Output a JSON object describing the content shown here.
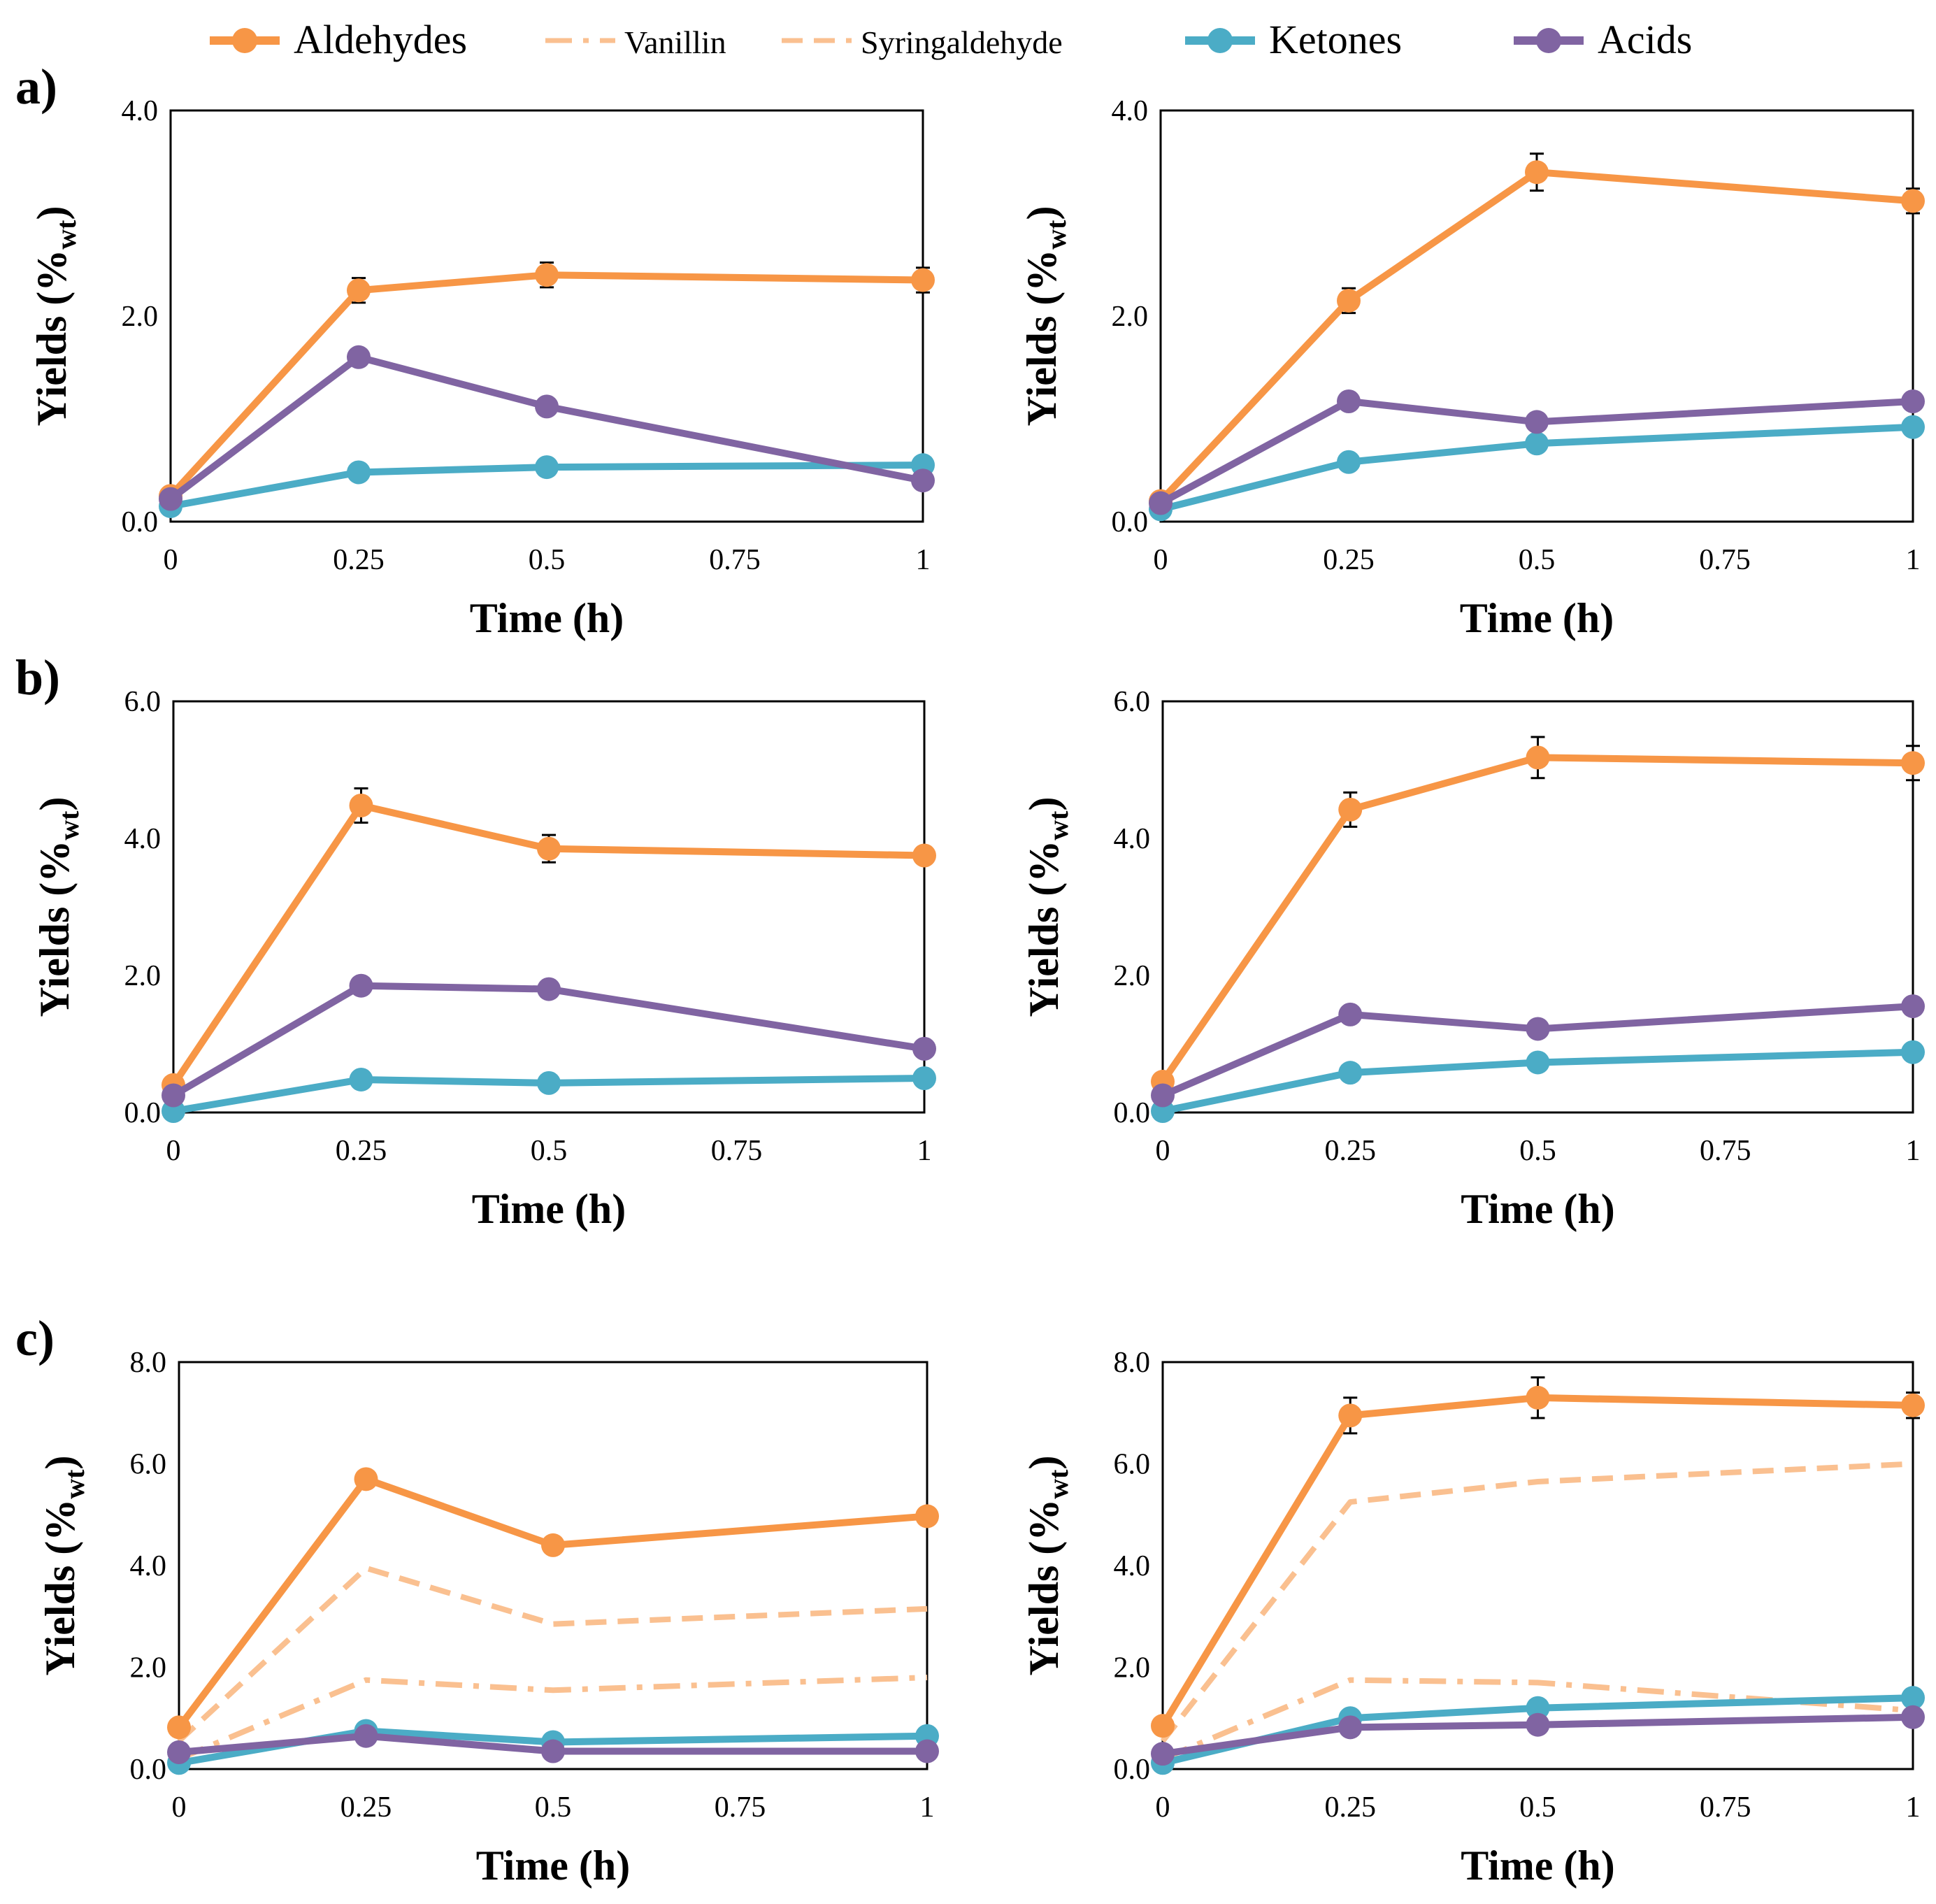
{
  "colors": {
    "aldehydes": "#F79646",
    "vanillin": "#FAC090",
    "syringaldehyde": "#FAC090",
    "ketones": "#4BACC6",
    "acids": "#8064A2"
  },
  "legend": [
    {
      "key": "aldehydes",
      "label": "Aldehydes",
      "style": "solid-marker"
    },
    {
      "key": "vanillin",
      "label": "Vanillin",
      "style": "dashdot"
    },
    {
      "key": "syringaldehyde",
      "label": "Syringaldehyde",
      "style": "dash"
    },
    {
      "key": "ketones",
      "label": "Ketones",
      "style": "solid-marker"
    },
    {
      "key": "acids",
      "label": "Acids",
      "style": "solid-marker"
    }
  ],
  "chart_data": [
    {
      "id": "a-left",
      "panel_label": "a)",
      "type": "line",
      "xlabel": "Time (h)",
      "ylabel": "Yields (%wt)",
      "ylabel_main": "Yields (%",
      "ylabel_sub": "wt",
      "ylabel_close": ")",
      "x": [
        0,
        0.25,
        0.5,
        0.75,
        1
      ],
      "x_ticks": [
        "0",
        "0.25",
        "0.5",
        "0.75",
        "1"
      ],
      "ylim": [
        0,
        4
      ],
      "y_ticks": [
        "0.0",
        "2.0",
        "4.0"
      ],
      "series": [
        {
          "name": "Aldehydes",
          "key": "aldehydes",
          "x": [
            0,
            0.25,
            0.5,
            1
          ],
          "values": [
            0.25,
            2.25,
            2.4,
            2.35
          ],
          "errors": [
            0,
            0.12,
            0.12,
            0.12
          ],
          "markers": true
        },
        {
          "name": "Ketones",
          "key": "ketones",
          "x": [
            0,
            0.25,
            0.5,
            1
          ],
          "values": [
            0.15,
            0.48,
            0.53,
            0.55
          ],
          "markers": true
        },
        {
          "name": "Acids",
          "key": "acids",
          "x": [
            0,
            0.25,
            0.5,
            1
          ],
          "values": [
            0.22,
            1.6,
            1.12,
            0.4
          ],
          "markers": true
        }
      ]
    },
    {
      "id": "a-right",
      "panel_label": "",
      "type": "line",
      "xlabel": "Time (h)",
      "ylabel": "Yields (%wt)",
      "ylabel_main": "Yields (%",
      "ylabel_sub": "wt",
      "ylabel_close": ")",
      "x": [
        0,
        0.25,
        0.5,
        0.75,
        1
      ],
      "x_ticks": [
        "0",
        "0.25",
        "0.5",
        "0.75",
        "1"
      ],
      "ylim": [
        0,
        4
      ],
      "y_ticks": [
        "0.0",
        "2.0",
        "4.0"
      ],
      "series": [
        {
          "name": "Aldehydes",
          "key": "aldehydes",
          "x": [
            0,
            0.25,
            0.5,
            1
          ],
          "values": [
            0.2,
            2.15,
            3.4,
            3.12
          ],
          "errors": [
            0,
            0.12,
            0.18,
            0.12
          ],
          "markers": true
        },
        {
          "name": "Ketones",
          "key": "ketones",
          "x": [
            0,
            0.25,
            0.5,
            1
          ],
          "values": [
            0.12,
            0.58,
            0.76,
            0.92
          ],
          "markers": true
        },
        {
          "name": "Acids",
          "key": "acids",
          "x": [
            0,
            0.25,
            0.5,
            1
          ],
          "values": [
            0.18,
            1.17,
            0.97,
            1.17
          ],
          "markers": true
        }
      ]
    },
    {
      "id": "b-left",
      "panel_label": "b)",
      "type": "line",
      "xlabel": "Time (h)",
      "ylabel": "Yields (%wt)",
      "ylabel_main": "Yields (%",
      "ylabel_sub": "wt",
      "ylabel_close": ")",
      "x": [
        0,
        0.25,
        0.5,
        0.75,
        1
      ],
      "x_ticks": [
        "0",
        "0.25",
        "0.5",
        "0.75",
        "1"
      ],
      "ylim": [
        0,
        6
      ],
      "y_ticks": [
        "0.0",
        "2.0",
        "4.0",
        "6.0"
      ],
      "series": [
        {
          "name": "Aldehydes",
          "key": "aldehydes",
          "x": [
            0,
            0.25,
            0.5,
            1
          ],
          "values": [
            0.4,
            4.48,
            3.85,
            3.75
          ],
          "errors": [
            0,
            0.25,
            0.2,
            0.12
          ],
          "markers": true
        },
        {
          "name": "Ketones",
          "key": "ketones",
          "x": [
            0,
            0.25,
            0.5,
            1
          ],
          "values": [
            0.02,
            0.48,
            0.43,
            0.5
          ],
          "markers": true
        },
        {
          "name": "Acids",
          "key": "acids",
          "x": [
            0,
            0.25,
            0.5,
            1
          ],
          "values": [
            0.25,
            1.85,
            1.8,
            0.93
          ],
          "markers": true
        }
      ]
    },
    {
      "id": "b-right",
      "panel_label": "",
      "type": "line",
      "xlabel": "Time (h)",
      "ylabel": "Yields (%wt)",
      "ylabel_main": "Yields (%",
      "ylabel_sub": "wt",
      "ylabel_close": ")",
      "x": [
        0,
        0.25,
        0.5,
        0.75,
        1
      ],
      "x_ticks": [
        "0",
        "0.25",
        "0.5",
        "0.75",
        "1"
      ],
      "ylim": [
        0,
        6
      ],
      "y_ticks": [
        "0.0",
        "2.0",
        "4.0",
        "6.0"
      ],
      "series": [
        {
          "name": "Aldehydes",
          "key": "aldehydes",
          "x": [
            0,
            0.25,
            0.5,
            1
          ],
          "values": [
            0.45,
            4.42,
            5.18,
            5.1
          ],
          "errors": [
            0,
            0.25,
            0.3,
            0.25
          ],
          "markers": true
        },
        {
          "name": "Ketones",
          "key": "ketones",
          "x": [
            0,
            0.25,
            0.5,
            1
          ],
          "values": [
            0.02,
            0.58,
            0.73,
            0.88
          ],
          "markers": true
        },
        {
          "name": "Acids",
          "key": "acids",
          "x": [
            0,
            0.25,
            0.5,
            1
          ],
          "values": [
            0.25,
            1.43,
            1.22,
            1.55
          ],
          "markers": true
        }
      ]
    },
    {
      "id": "c-left",
      "panel_label": "c)",
      "type": "line",
      "xlabel": "Time (h)",
      "ylabel": "Yields (%wt)",
      "ylabel_main": "Yields (%",
      "ylabel_sub": "wt",
      "ylabel_close": ")",
      "x": [
        0,
        0.25,
        0.5,
        0.75,
        1
      ],
      "x_ticks": [
        "0",
        "0.25",
        "0.5",
        "0.75",
        "1"
      ],
      "ylim": [
        0,
        8
      ],
      "y_ticks": [
        "0.0",
        "2.0",
        "4.0",
        "6.0",
        "8.0"
      ],
      "series": [
        {
          "name": "Syringaldehyde",
          "key": "syringaldehyde",
          "x": [
            0,
            0.25,
            0.5,
            1
          ],
          "values": [
            0.55,
            3.95,
            2.85,
            3.15
          ],
          "dash": "dash"
        },
        {
          "name": "Vanillin",
          "key": "vanillin",
          "x": [
            0,
            0.25,
            0.5,
            1
          ],
          "values": [
            0.2,
            1.75,
            1.55,
            1.8
          ],
          "dash": "dashdot"
        },
        {
          "name": "Aldehydes",
          "key": "aldehydes",
          "x": [
            0,
            0.25,
            0.5,
            1
          ],
          "values": [
            0.82,
            5.7,
            4.4,
            4.97
          ],
          "markers": true
        },
        {
          "name": "Ketones",
          "key": "ketones",
          "x": [
            0,
            0.25,
            0.5,
            1
          ],
          "values": [
            0.12,
            0.75,
            0.53,
            0.65
          ],
          "markers": true
        },
        {
          "name": "Acids",
          "key": "acids",
          "x": [
            0,
            0.25,
            0.5,
            1
          ],
          "values": [
            0.33,
            0.65,
            0.35,
            0.35
          ],
          "markers": true
        }
      ]
    },
    {
      "id": "c-right",
      "panel_label": "",
      "type": "line",
      "xlabel": "Time (h)",
      "ylabel": "Yields (%wt)",
      "ylabel_main": "Yields (%",
      "ylabel_sub": "wt",
      "ylabel_close": ")",
      "x": [
        0,
        0.25,
        0.5,
        0.75,
        1
      ],
      "x_ticks": [
        "0",
        "0.25",
        "0.5",
        "0.75",
        "1"
      ],
      "ylim": [
        0,
        8
      ],
      "y_ticks": [
        "0.0",
        "2.0",
        "4.0",
        "6.0",
        "8.0"
      ],
      "series": [
        {
          "name": "Syringaldehyde",
          "key": "syringaldehyde",
          "x": [
            0,
            0.25,
            0.5,
            1
          ],
          "values": [
            0.55,
            5.25,
            5.65,
            6.0
          ],
          "dash": "dash"
        },
        {
          "name": "Vanillin",
          "key": "vanillin",
          "x": [
            0,
            0.25,
            0.5,
            1
          ],
          "values": [
            0.2,
            1.75,
            1.7,
            1.15
          ],
          "dash": "dashdot"
        },
        {
          "name": "Aldehydes",
          "key": "aldehydes",
          "x": [
            0,
            0.25,
            0.5,
            1
          ],
          "values": [
            0.85,
            6.95,
            7.3,
            7.15
          ],
          "errors": [
            0,
            0.35,
            0.4,
            0.25
          ],
          "markers": true
        },
        {
          "name": "Ketones",
          "key": "ketones",
          "x": [
            0,
            0.25,
            0.5,
            1
          ],
          "values": [
            0.12,
            1.0,
            1.2,
            1.4
          ],
          "markers": true
        },
        {
          "name": "Acids",
          "key": "acids",
          "x": [
            0,
            0.25,
            0.5,
            1
          ],
          "values": [
            0.3,
            0.82,
            0.87,
            1.02
          ],
          "markers": true
        }
      ]
    }
  ]
}
